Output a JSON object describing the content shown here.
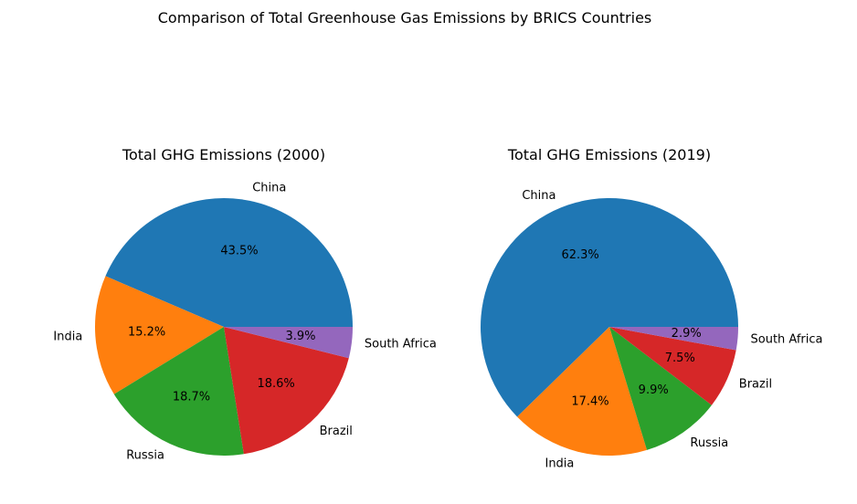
{
  "figure": {
    "suptitle": "Comparison of Total Greenhouse Gas Emissions by BRICS Countries"
  },
  "chart_data": [
    {
      "type": "pie",
      "title": "Total GHG Emissions (2000)",
      "labels": [
        "China",
        "India",
        "Russia",
        "Brazil",
        "South Africa"
      ],
      "values": [
        43.5,
        15.2,
        18.7,
        18.6,
        3.9
      ],
      "value_labels": [
        "43.5%",
        "15.2%",
        "18.7%",
        "18.6%",
        "3.9%"
      ],
      "colors": [
        "#1f77b4",
        "#ff7f0e",
        "#2ca02c",
        "#d62728",
        "#9467bd"
      ],
      "start_angle": 0,
      "direction": "counterclockwise"
    },
    {
      "type": "pie",
      "title": "Total GHG Emissions (2019)",
      "labels": [
        "China",
        "India",
        "Russia",
        "Brazil",
        "South Africa"
      ],
      "values": [
        62.3,
        17.4,
        9.9,
        7.5,
        2.9
      ],
      "value_labels": [
        "62.3%",
        "17.4%",
        "9.9%",
        "7.5%",
        "2.9%"
      ],
      "colors": [
        "#1f77b4",
        "#ff7f0e",
        "#2ca02c",
        "#d62728",
        "#9467bd"
      ],
      "start_angle": 0,
      "direction": "counterclockwise"
    }
  ]
}
